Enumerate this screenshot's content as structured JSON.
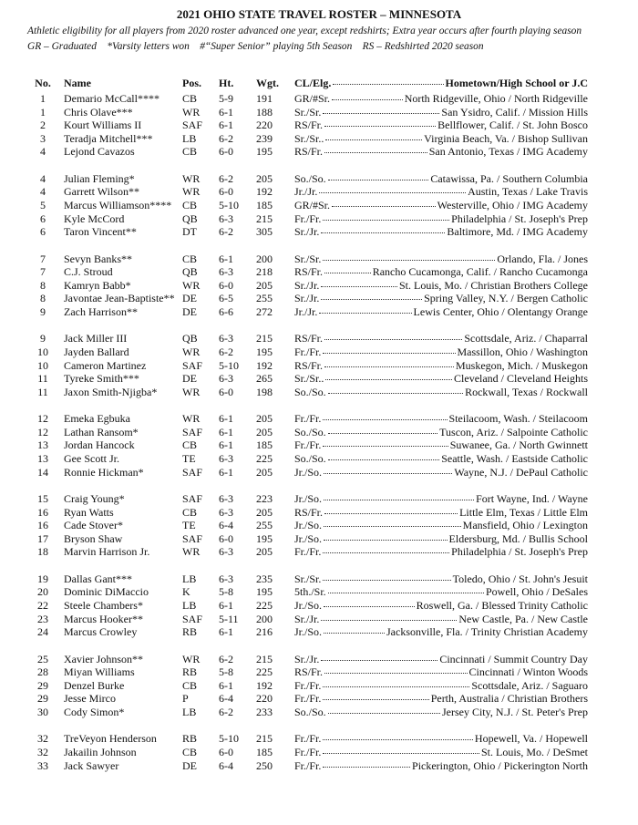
{
  "header": {
    "title": "2021 OHIO STATE TRAVEL ROSTER – MINNESOTA",
    "subtitle": "Athletic eligibility for all players from 2020 roster advanced one year, except redshirts; Extra year occurs after fourth playing season",
    "legend": "GR – Graduated    *Varsity letters won    #“Super Senior” playing 5th Season    RS – Redshirted 2020 season"
  },
  "columns": [
    "No.",
    "Name",
    "Pos.",
    "Ht.",
    "Wgt.",
    "CL/Elg.",
    "Hometown/High School or J.C"
  ],
  "groups": [
    [
      [
        "1",
        "Demario McCall****",
        "CB",
        "5-9",
        "191",
        "GR/#Sr.",
        "North Ridgeville, Ohio / North Ridgeville"
      ],
      [
        "1",
        "Chris Olave***",
        "WR",
        "6-1",
        "188",
        "Sr./Sr.",
        "San Ysidro, Calif. / Mission Hills"
      ],
      [
        "2",
        "Kourt Williams II",
        "SAF",
        "6-1",
        "220",
        "RS/Fr.",
        "Bellflower, Calif. / St. John Bosco"
      ],
      [
        "3",
        "Teradja Mitchell***",
        "LB",
        "6-2",
        "239",
        "Sr./Sr..",
        "Virginia Beach, Va. / Bishop Sullivan"
      ],
      [
        "4",
        "Lejond Cavazos",
        "CB",
        "6-0",
        "195",
        "RS/Fr.",
        "San Antonio, Texas / IMG Academy"
      ]
    ],
    [
      [
        "4",
        "Julian Fleming*",
        "WR",
        "6-2",
        "205",
        "So./So.",
        "Catawissa, Pa. / Southern Columbia"
      ],
      [
        "4",
        "Garrett Wilson**",
        "WR",
        "6-0",
        "192",
        "Jr./Jr.",
        "Austin, Texas / Lake Travis"
      ],
      [
        "5",
        "Marcus Williamson****",
        "CB",
        "5-10",
        "185",
        "GR/#Sr.",
        "Westerville, Ohio / IMG Academy"
      ],
      [
        "6",
        "Kyle McCord",
        "QB",
        "6-3",
        "215",
        "Fr./Fr.",
        "Philadelphia / St. Joseph's Prep"
      ],
      [
        "6",
        "Taron Vincent**",
        "DT",
        "6-2",
        "305",
        "Sr./Jr.",
        "Baltimore, Md. / IMG Academy"
      ]
    ],
    [
      [
        "7",
        "Sevyn Banks**",
        "CB",
        "6-1",
        "200",
        "Sr./Sr.",
        "Orlando, Fla. / Jones"
      ],
      [
        "7",
        "C.J. Stroud",
        "QB",
        "6-3",
        "218",
        "RS/Fr.",
        "Rancho Cucamonga, Calif. / Rancho Cucamonga"
      ],
      [
        "8",
        "Kamryn Babb*",
        "WR",
        "6-0",
        "205",
        "Sr./Jr.",
        "St. Louis, Mo. / Christian Brothers College"
      ],
      [
        "8",
        "Javontae Jean-Baptiste**",
        "DE",
        "6-5",
        "255",
        "Sr./Jr.",
        "Spring Valley, N.Y. / Bergen Catholic"
      ],
      [
        "9",
        "Zach Harrison**",
        "DE",
        "6-6",
        "272",
        "Jr./Jr.",
        "Lewis Center, Ohio / Olentangy Orange"
      ]
    ],
    [
      [
        "9",
        "Jack Miller III",
        "QB",
        "6-3",
        "215",
        "RS/Fr.",
        "Scottsdale, Ariz. / Chaparral"
      ],
      [
        "10",
        "Jayden Ballard",
        "WR",
        "6-2",
        "195",
        "Fr./Fr.",
        "Massillon, Ohio / Washington"
      ],
      [
        "10",
        "Cameron Martinez",
        "SAF",
        "5-10",
        "192",
        "RS/Fr.",
        "Muskegon, Mich. / Muskegon"
      ],
      [
        "11",
        "Tyreke Smith***",
        "DE",
        "6-3",
        "265",
        "Sr./Sr..",
        "Cleveland / Cleveland Heights"
      ],
      [
        "11",
        "Jaxon Smith-Njigba*",
        "WR",
        "6-0",
        "198",
        "So./So.",
        "Rockwall, Texas / Rockwall"
      ]
    ],
    [
      [
        "12",
        "Emeka Egbuka",
        "WR",
        "6-1",
        "205",
        "Fr./Fr.",
        "Steilacoom, Wash. / Steilacoom"
      ],
      [
        "12",
        "Lathan Ransom*",
        "SAF",
        "6-1",
        "205",
        "So./So.",
        "Tuscon, Ariz. / Salpointe Catholic"
      ],
      [
        "13",
        "Jordan Hancock",
        "CB",
        "6-1",
        "185",
        "Fr./Fr.",
        "Suwanee, Ga. / North Gwinnett"
      ],
      [
        "13",
        "Gee Scott Jr.",
        "TE",
        "6-3",
        "225",
        "So./So.",
        "Seattle, Wash. / Eastside Catholic"
      ],
      [
        "14",
        "Ronnie Hickman*",
        "SAF",
        "6-1",
        "205",
        "Jr./So.",
        "Wayne, N.J. / DePaul Catholic"
      ]
    ],
    [
      [
        "15",
        "Craig Young*",
        "SAF",
        "6-3",
        "223",
        "Jr./So.",
        "Fort Wayne, Ind. / Wayne"
      ],
      [
        "16",
        "Ryan Watts",
        "CB",
        "6-3",
        "205",
        "RS/Fr.",
        "Little Elm, Texas / Little Elm"
      ],
      [
        "16",
        "Cade Stover*",
        "TE",
        "6-4",
        "255",
        "Jr./So.",
        "Mansfield, Ohio / Lexington"
      ],
      [
        "17",
        "Bryson Shaw",
        "SAF",
        "6-0",
        "195",
        "Jr./So.",
        "Eldersburg, Md. / Bullis School"
      ],
      [
        "18",
        "Marvin Harrison Jr.",
        "WR",
        "6-3",
        "205",
        "Fr./Fr.",
        "Philadelphia / St. Joseph's Prep"
      ]
    ],
    [
      [
        "19",
        "Dallas Gant***",
        "LB",
        "6-3",
        "235",
        "Sr./Sr.",
        "Toledo, Ohio / St. John's Jesuit"
      ],
      [
        "20",
        "Dominic DiMaccio",
        "K",
        "5-8",
        "195",
        "5th./Sr.",
        "Powell, Ohio / DeSales"
      ],
      [
        "22",
        "Steele Chambers*",
        "LB",
        "6-1",
        "225",
        "Jr./So.",
        "Roswell, Ga. / Blessed Trinity Catholic"
      ],
      [
        "23",
        "Marcus Hooker**",
        "SAF",
        "5-11",
        "200",
        "Sr./Jr.",
        "New Castle, Pa. / New Castle"
      ],
      [
        "24",
        "Marcus Crowley",
        "RB",
        "6-1",
        "216",
        "Jr./So.",
        "Jacksonville, Fla. / Trinity Christian Academy"
      ]
    ],
    [
      [
        "25",
        "Xavier Johnson**",
        "WR",
        "6-2",
        "215",
        "Sr./Jr.",
        "Cincinnati / Summit Country Day"
      ],
      [
        "28",
        "Miyan Williams",
        "RB",
        "5-8",
        "225",
        "RS/Fr.",
        "Cincinnati / Winton Woods"
      ],
      [
        "29",
        "Denzel Burke",
        "CB",
        "6-1",
        "192",
        "Fr./Fr.",
        "Scottsdale, Ariz. / Saguaro"
      ],
      [
        "29",
        "Jesse Mirco",
        "P",
        "6-4",
        "220",
        "Fr./Fr.",
        "Perth, Australia / Christian Brothers"
      ],
      [
        "30",
        "Cody Simon*",
        "LB",
        "6-2",
        "233",
        "So./So.",
        "Jersey City, N.J. / St. Peter's Prep"
      ]
    ],
    [
      [
        "32",
        "TreVeyon Henderson",
        "RB",
        "5-10",
        "215",
        "Fr./Fr.",
        "Hopewell, Va. / Hopewell"
      ],
      [
        "32",
        "Jakailin Johnson",
        "CB",
        "6-0",
        "185",
        "Fr./Fr.",
        "St. Louis, Mo. / DeSmet"
      ],
      [
        "33",
        "Jack Sawyer",
        "DE",
        "6-4",
        "250",
        "Fr./Fr.",
        "Pickerington, Ohio / Pickerington North"
      ]
    ]
  ]
}
